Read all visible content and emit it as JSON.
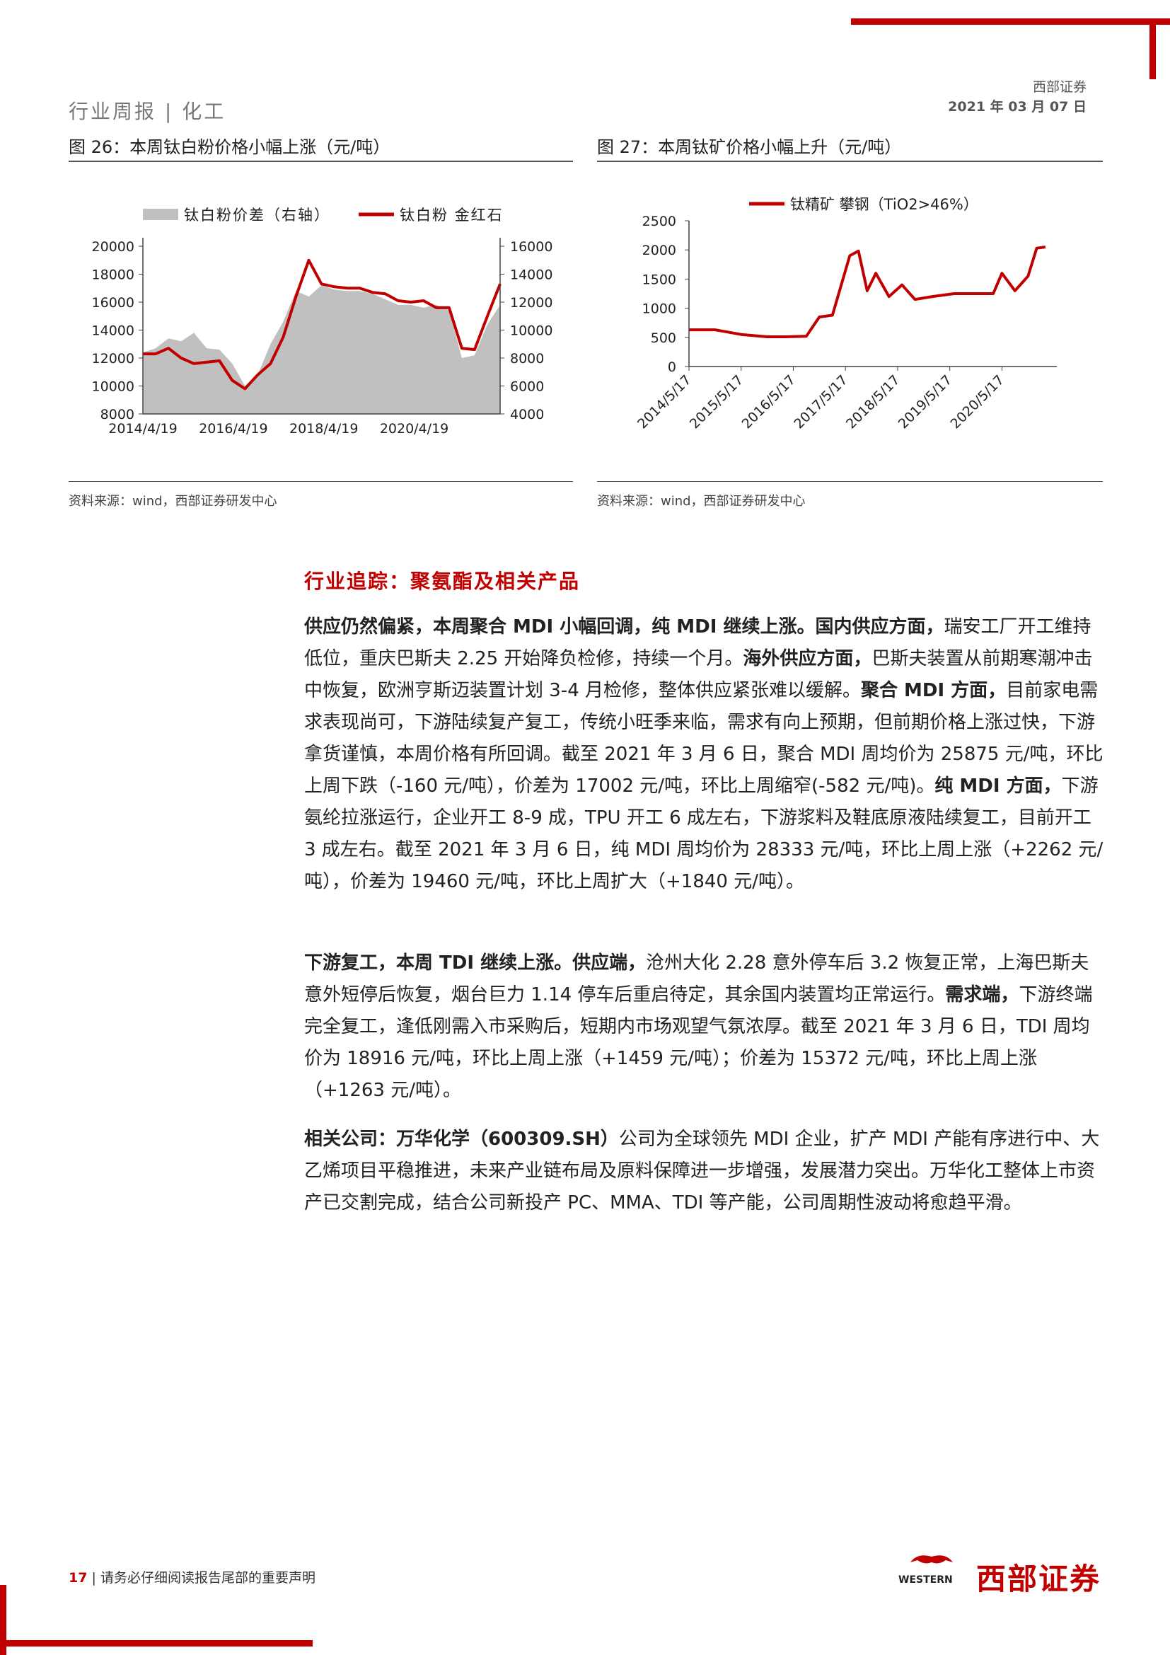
{
  "header": {
    "left": "行业周报 | 化工",
    "company": "西部证券",
    "date": "2021 年 03 月 07 日"
  },
  "figures": [
    {
      "title": "图 26：本周钛白粉价格小幅上涨（元/吨）",
      "source": "资料来源：wind，西部证券研发中心"
    },
    {
      "title": "图 27：本周钛矿价格小幅上升（元/吨）",
      "source": "资料来源：wind，西部证券研发中心"
    }
  ],
  "chart_data": [
    {
      "type": "area",
      "legend": [
        "钛白粉价差（右轴）",
        "钛白粉 金红石"
      ],
      "legend_position": "top",
      "x_ticks": [
        "2014/4/19",
        "2016/4/19",
        "2018/4/19",
        "2020/4/19"
      ],
      "y_left_ticks": [
        "20000",
        "18000",
        "16000",
        "14000",
        "12000",
        "10000",
        "8000"
      ],
      "y_right_ticks": [
        "16000",
        "14000",
        "12000",
        "10000",
        "8000",
        "6000",
        "4000"
      ],
      "y_left_range": [
        8000,
        20000
      ],
      "y_right_range": [
        4000,
        16000
      ],
      "grid": false,
      "x": [
        "2014/4",
        "2014/7",
        "2014/10",
        "2015/1",
        "2015/4",
        "2015/7",
        "2015/10",
        "2016/1",
        "2016/4",
        "2016/7",
        "2016/10",
        "2017/1",
        "2017/4",
        "2017/7",
        "2017/10",
        "2018/1",
        "2018/4",
        "2018/7",
        "2018/10",
        "2019/1",
        "2019/4",
        "2019/7",
        "2019/10",
        "2020/1",
        "2020/4",
        "2020/7",
        "2020/10",
        "2021/1",
        "2021/3"
      ],
      "series": [
        {
          "name": "钛白粉价差（右轴）",
          "axis": "right",
          "color": "#c0c0c0",
          "values": [
            8400,
            8700,
            9400,
            9200,
            9800,
            8700,
            8600,
            7600,
            6000,
            6800,
            9000,
            10600,
            12800,
            12400,
            13200,
            12900,
            12800,
            12800,
            12600,
            12200,
            11800,
            11800,
            11600,
            11800,
            11400,
            8000,
            8200,
            10400,
            11800
          ]
        },
        {
          "name": "钛白粉 金红石",
          "axis": "left",
          "color": "#c00000",
          "values": [
            12300,
            12300,
            12700,
            12000,
            11600,
            11700,
            11800,
            10400,
            9800,
            10800,
            11600,
            13500,
            16400,
            19000,
            17300,
            17100,
            17000,
            17000,
            16700,
            16600,
            16100,
            16000,
            16100,
            15600,
            15600,
            12700,
            12600,
            15000,
            17300
          ]
        }
      ]
    },
    {
      "type": "line",
      "legend": [
        "钛精矿 攀钢（TiO2>46%）"
      ],
      "legend_position": "top",
      "x_ticks": [
        "2014/5/17",
        "2015/5/17",
        "2016/5/17",
        "2017/5/17",
        "2018/5/17",
        "2019/5/17",
        "2020/5/17"
      ],
      "y_ticks": [
        "2500",
        "2000",
        "1500",
        "1000",
        "500",
        "0"
      ],
      "ylim": [
        0,
        2500
      ],
      "grid": false,
      "series": [
        {
          "name": "钛精矿 攀钢（TiO2>46%）",
          "color": "#c00000",
          "x": [
            "2014/5",
            "2014/11",
            "2015/5",
            "2015/11",
            "2016/3",
            "2016/8",
            "2016/11",
            "2017/2",
            "2017/6",
            "2017/8",
            "2017/10",
            "2017/12",
            "2018/3",
            "2018/6",
            "2018/9",
            "2019/1",
            "2019/6",
            "2019/11",
            "2020/3",
            "2020/5",
            "2020/8",
            "2020/11",
            "2021/1",
            "2021/3"
          ],
          "values": [
            630,
            630,
            550,
            510,
            510,
            520,
            850,
            880,
            1900,
            1980,
            1300,
            1600,
            1200,
            1400,
            1150,
            1200,
            1250,
            1250,
            1250,
            1600,
            1300,
            1550,
            2030,
            2050
          ]
        }
      ]
    }
  ],
  "section": {
    "title": "行业追踪：聚氨酯及相关产品"
  },
  "paragraphs": [
    {
      "segments": [
        {
          "b": true,
          "t": "供应仍然偏紧，本周聚合 MDI 小幅回调，纯 MDI 继续上涨。国内供应方面，"
        },
        {
          "b": false,
          "t": "瑞安工厂开工维持低位，重庆巴斯夫 2.25 开始降负检修，持续一个月。"
        },
        {
          "b": true,
          "t": "海外供应方面，"
        },
        {
          "b": false,
          "t": "巴斯夫装置从前期寒潮冲击中恢复，欧洲亨斯迈装置计划 3-4 月检修，整体供应紧张难以缓解。"
        },
        {
          "b": true,
          "t": "聚合 MDI 方面，"
        },
        {
          "b": false,
          "t": "目前家电需求表现尚可，下游陆续复产复工，传统小旺季来临，需求有向上预期，但前期价格上涨过快，下游拿货谨慎，本周价格有所回调。截至 2021 年 3 月 6 日，聚合 MDI 周均价为 25875 元/吨，环比上周下跌（-160 元/吨），价差为 17002 元/吨，环比上周缩窄(-582 元/吨)。"
        },
        {
          "b": true,
          "t": "纯 MDI 方面，"
        },
        {
          "b": false,
          "t": "下游氨纶拉涨运行，企业开工 8-9 成，TPU 开工 6 成左右，下游浆料及鞋底原液陆续复工，目前开工 3 成左右。截至 2021 年 3 月 6 日，纯 MDI 周均价为 28333 元/吨，环比上周上涨（+2262 元/吨），价差为 19460 元/吨，环比上周扩大（+1840 元/吨）。"
        }
      ]
    },
    {
      "segments": [
        {
          "b": true,
          "t": "下游复工，本周 TDI 继续上涨。供应端，"
        },
        {
          "b": false,
          "t": "沧州大化 2.28 意外停车后 3.2 恢复正常，上海巴斯夫意外短停后恢复，烟台巨力 1.14 停车后重启待定，其余国内装置均正常运行。"
        },
        {
          "b": true,
          "t": "需求端，"
        },
        {
          "b": false,
          "t": "下游终端完全复工，逢低刚需入市采购后，短期内市场观望气氛浓厚。截至 2021 年 3 月 6 日，TDI 周均价为 18916 元/吨，环比上周上涨（+1459 元/吨）；价差为 15372 元/吨，环比上周上涨（+1263 元/吨）。"
        }
      ]
    },
    {
      "segments": [
        {
          "b": true,
          "t": "相关公司：万华化学（600309.SH）"
        },
        {
          "b": false,
          "t": "公司为全球领先 MDI 企业，扩产 MDI 产能有序进行中、大乙烯项目平稳推进，未来产业链布局及原料保障进一步增强，发展潜力突出。万华化工整体上市资产已交割完成，结合公司新投产 PC、MMA、TDI 等产能，公司周期性波动将愈趋平滑。"
        }
      ]
    }
  ],
  "footer": {
    "page": "17",
    "note": "请务必仔细阅读报告尾部的重要声明",
    "logo_cn": "西部证券",
    "logo_en": "WESTERN"
  },
  "colors": {
    "accent": "#c00000",
    "area": "#c0c0c0"
  }
}
